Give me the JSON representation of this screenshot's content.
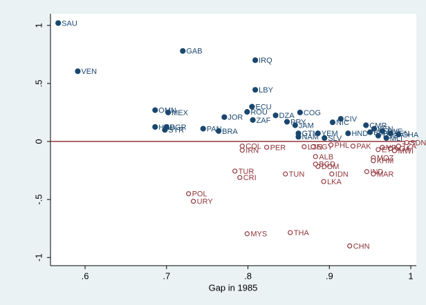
{
  "chart_data": {
    "type": "scatter",
    "x_label": "Gap in 1985",
    "xlim": [
      0.5575,
      1.0068
    ],
    "ylim": [
      -1.07,
      1.1
    ],
    "xticks": [
      {
        "value": 0.6,
        "label": ".6"
      },
      {
        "value": 0.7,
        "label": ".7"
      },
      {
        "value": 0.8,
        "label": ".8"
      },
      {
        "value": 0.9,
        "label": ".9"
      },
      1
    ],
    "yticks": [
      -1,
      {
        "value": -0.5,
        "label": "-.5"
      },
      0,
      {
        "value": 0.5,
        "label": ".5"
      },
      1
    ],
    "reference_line": {
      "value": 0,
      "color": "#90353b"
    },
    "series": [
      {
        "color": "#1a476f",
        "marker": "filled",
        "x": [
          0.567,
          0.591,
          0.72,
          0.809,
          0.809,
          0.805,
          0.799,
          0.686,
          0.702,
          0.771,
          0.806,
          0.834,
          0.864,
          0.848,
          0.858,
          0.686,
          0.7,
          0.698,
          0.745,
          0.764,
          0.862,
          0.862,
          0.914,
          0.904,
          0.923,
          0.886,
          0.894,
          0.945,
          0.955,
          0.965,
          0.975,
          0.985,
          0.95,
          0.96,
          0.97
        ],
        "values": [
          1.02,
          0.605,
          0.78,
          0.7,
          0.445,
          0.3,
          0.255,
          0.27,
          0.25,
          0.21,
          0.185,
          0.225,
          0.25,
          0.17,
          0.14,
          0.125,
          0.125,
          0.1,
          0.11,
          0.09,
          0.07,
          0.04,
          0.195,
          0.165,
          0.07,
          0.07,
          0.03,
          0.14,
          0.11,
          0.09,
          0.07,
          0.06,
          0.08,
          0.05,
          0.03
        ],
        "labels": [
          "SAU",
          "VEN",
          "GAB",
          "IRQ",
          "LBY",
          "ECU",
          "ROU",
          "OMN",
          "MEX",
          "JOR",
          "ZAF",
          "DZA",
          "COG",
          "PRY",
          "JAM",
          "HND",
          "BGR",
          "SYR",
          "PAN",
          "BRA",
          "GTM",
          "NAM",
          "CIV",
          "NIC",
          "HND",
          "YEM",
          "SLV",
          "CMR",
          "KEN",
          "ZWE",
          "SEN",
          "GHA",
          "BEN",
          "TGO",
          "MLI"
        ]
      },
      {
        "color": "#90353b",
        "marker": "hollow",
        "x": [
          0.793,
          0.793,
          0.823,
          0.869,
          0.88,
          0.902,
          0.883,
          0.886,
          0.883,
          0.784,
          0.79,
          0.846,
          0.903,
          0.893,
          0.727,
          0.733,
          0.799,
          0.852,
          0.925,
          0.946,
          0.954,
          0.954,
          0.954,
          0.929,
          0.965,
          0.975,
          0.985,
          0.995,
          0.96,
          0.98
        ],
        "values": [
          -0.04,
          -0.075,
          -0.05,
          -0.045,
          -0.045,
          -0.03,
          -0.13,
          -0.215,
          -0.195,
          -0.255,
          -0.31,
          -0.28,
          -0.28,
          -0.345,
          -0.45,
          -0.515,
          -0.795,
          -0.785,
          -0.9,
          -0.26,
          -0.28,
          -0.14,
          -0.165,
          -0.04,
          -0.05,
          -0.06,
          -0.04,
          -0.01,
          -0.07,
          -0.08
        ],
        "labels": [
          "COL",
          "IRN",
          "PER",
          "LBN",
          "EGY",
          "PHL",
          "ALB",
          "DOM",
          "BGD",
          "TUR",
          "CRI",
          "TUN",
          "IDN",
          "LKA",
          "POL",
          "URY",
          "MYS",
          "THA",
          "CHN",
          "IND",
          "MAR",
          "MOZ",
          "KHM",
          "PAK",
          "NPL",
          "UGA",
          "TZA",
          "SDN",
          "ETH",
          "MWI"
        ]
      }
    ]
  }
}
